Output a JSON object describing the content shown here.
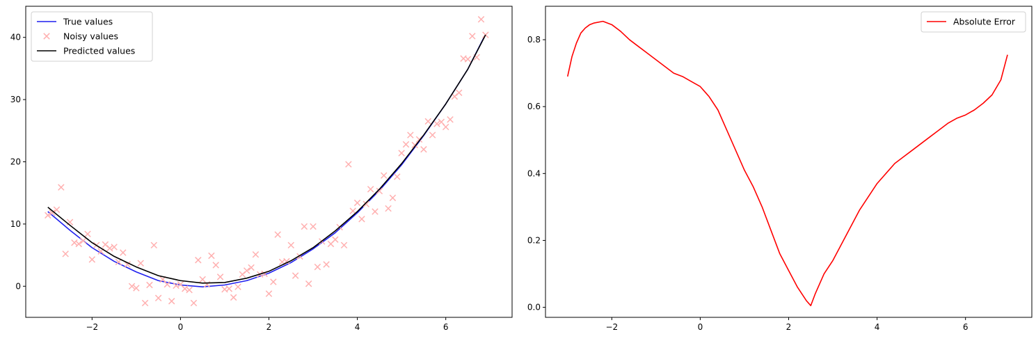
{
  "chart_data": [
    {
      "type": "line",
      "xlim": [
        -3.5,
        7.5
      ],
      "ylim": [
        -5,
        45
      ],
      "xticks": [
        -2,
        0,
        2,
        4,
        6
      ],
      "yticks": [
        0,
        10,
        20,
        30,
        40
      ],
      "grid": false,
      "legend_position": "top-left",
      "series": [
        {
          "name": "True values",
          "kind": "line",
          "color": "#1f1fef",
          "x": [
            -3.0,
            -2.5,
            -2.0,
            -1.5,
            -1.0,
            -0.5,
            0.0,
            0.5,
            1.0,
            1.5,
            2.0,
            2.5,
            3.0,
            3.5,
            4.0,
            4.5,
            5.0,
            5.5,
            6.0,
            6.5,
            6.9
          ],
          "y": [
            12.0,
            9.0,
            6.2,
            4.0,
            2.3,
            0.9,
            0.2,
            -0.1,
            0.2,
            0.9,
            2.1,
            3.8,
            6.0,
            8.6,
            11.8,
            15.4,
            19.5,
            24.2,
            29.3,
            34.9,
            40.5
          ]
        },
        {
          "name": "Noisy values",
          "kind": "scatter",
          "color": "#ffb0b0",
          "x": [
            -3.0,
            -2.9,
            -2.8,
            -2.7,
            -2.6,
            -2.5,
            -2.4,
            -2.3,
            -2.2,
            -2.1,
            -2.0,
            -1.9,
            -1.8,
            -1.7,
            -1.6,
            -1.5,
            -1.4,
            -1.3,
            -1.2,
            -1.1,
            -1.0,
            -0.9,
            -0.8,
            -0.7,
            -0.6,
            -0.5,
            -0.4,
            -0.3,
            -0.2,
            -0.1,
            0.0,
            0.1,
            0.2,
            0.3,
            0.4,
            0.5,
            0.6,
            0.7,
            0.8,
            0.9,
            1.0,
            1.1,
            1.2,
            1.3,
            1.4,
            1.5,
            1.6,
            1.7,
            1.8,
            1.9,
            2.0,
            2.1,
            2.2,
            2.3,
            2.4,
            2.5,
            2.6,
            2.7,
            2.8,
            2.9,
            3.0,
            3.1,
            3.2,
            3.3,
            3.4,
            3.5,
            3.6,
            3.7,
            3.8,
            3.9,
            4.0,
            4.1,
            4.2,
            4.3,
            4.4,
            4.5,
            4.6,
            4.7,
            4.8,
            4.9,
            5.0,
            5.1,
            5.2,
            5.3,
            5.4,
            5.5,
            5.6,
            5.7,
            5.8,
            5.9,
            6.0,
            6.1,
            6.2,
            6.3,
            6.4,
            6.5,
            6.6,
            6.7,
            6.8,
            6.9
          ],
          "y": [
            11.4,
            11.8,
            12.3,
            15.9,
            5.2,
            10.3,
            7.0,
            6.8,
            7.3,
            8.4,
            4.3,
            6.6,
            5.6,
            6.7,
            6.1,
            6.3,
            3.9,
            5.4,
            3.5,
            0.0,
            -0.3,
            3.7,
            -2.7,
            0.2,
            6.6,
            -1.9,
            1.1,
            0.3,
            -2.4,
            0.1,
            0.3,
            -0.4,
            -0.6,
            -2.7,
            4.2,
            1.1,
            0.3,
            4.9,
            3.4,
            1.5,
            -0.5,
            -0.4,
            -1.8,
            -0.1,
            1.9,
            2.5,
            3.0,
            5.1,
            1.9,
            2.0,
            -1.2,
            0.7,
            8.3,
            3.9,
            4.0,
            6.6,
            1.7,
            4.8,
            9.6,
            0.4,
            9.6,
            3.1,
            7.2,
            3.5,
            6.8,
            7.5,
            9.5,
            6.6,
            19.6,
            12.1,
            13.4,
            10.8,
            13.2,
            15.6,
            12.0,
            15.3,
            17.8,
            12.5,
            14.2,
            17.6,
            21.4,
            22.8,
            24.3,
            22.7,
            23.6,
            22.0,
            26.5,
            24.3,
            26.1,
            26.4,
            25.6,
            26.8,
            30.5,
            31.1,
            36.6,
            36.5,
            40.2,
            36.8,
            42.9,
            40.4
          ]
        },
        {
          "name": "Predicted values",
          "kind": "line",
          "color": "#000000",
          "x": [
            -3.0,
            -2.5,
            -2.0,
            -1.5,
            -1.0,
            -0.5,
            0.0,
            0.5,
            1.0,
            1.5,
            2.0,
            2.5,
            3.0,
            3.5,
            4.0,
            4.5,
            5.0,
            5.5,
            6.0,
            6.5,
            6.9
          ],
          "y": [
            12.7,
            9.8,
            7.0,
            4.8,
            3.1,
            1.7,
            0.9,
            0.5,
            0.6,
            1.3,
            2.4,
            4.1,
            6.2,
            8.9,
            12.0,
            15.6,
            19.7,
            24.3,
            29.3,
            34.9,
            40.4
          ]
        }
      ]
    },
    {
      "type": "line",
      "xlim": [
        -3.5,
        7.5
      ],
      "ylim": [
        -0.03,
        0.9
      ],
      "xticks": [
        -2,
        0,
        2,
        4,
        6
      ],
      "yticks": [
        0.0,
        0.2,
        0.4,
        0.6,
        0.8
      ],
      "grid": false,
      "legend_position": "top-right",
      "series": [
        {
          "name": "Absolute Error",
          "kind": "line",
          "color": "#ff0000",
          "x": [
            -3.0,
            -2.9,
            -2.8,
            -2.7,
            -2.6,
            -2.5,
            -2.4,
            -2.2,
            -2.0,
            -1.8,
            -1.6,
            -1.4,
            -1.2,
            -1.0,
            -0.8,
            -0.6,
            -0.4,
            -0.2,
            0.0,
            0.2,
            0.4,
            0.6,
            0.8,
            1.0,
            1.2,
            1.4,
            1.6,
            1.8,
            2.0,
            2.2,
            2.4,
            2.5,
            2.6,
            2.8,
            3.0,
            3.2,
            3.4,
            3.6,
            3.8,
            4.0,
            4.2,
            4.4,
            4.6,
            4.8,
            5.0,
            5.2,
            5.4,
            5.6,
            5.8,
            6.0,
            6.2,
            6.4,
            6.6,
            6.8,
            6.95
          ],
          "y": [
            0.69,
            0.75,
            0.79,
            0.82,
            0.835,
            0.845,
            0.85,
            0.855,
            0.845,
            0.825,
            0.8,
            0.78,
            0.76,
            0.74,
            0.72,
            0.7,
            0.69,
            0.675,
            0.66,
            0.63,
            0.59,
            0.53,
            0.47,
            0.41,
            0.36,
            0.3,
            0.23,
            0.16,
            0.11,
            0.06,
            0.02,
            0.005,
            0.04,
            0.1,
            0.14,
            0.19,
            0.24,
            0.29,
            0.33,
            0.37,
            0.4,
            0.43,
            0.45,
            0.47,
            0.49,
            0.51,
            0.53,
            0.55,
            0.565,
            0.575,
            0.59,
            0.61,
            0.635,
            0.68,
            0.755
          ]
        }
      ]
    }
  ]
}
